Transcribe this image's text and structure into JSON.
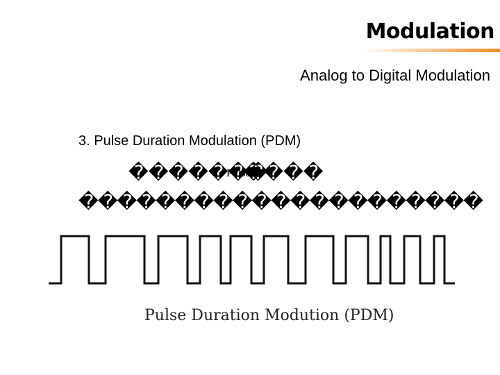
{
  "header": {
    "title": "Modulation",
    "subtitle": "Analog to Digital Modulation"
  },
  "body": {
    "heading": "3. Pulse Duration Modulation (PDM)",
    "line1": [
      "�������",
      "Pulse",
      "����"
    ],
    "line2": "���������������������"
  },
  "figure": {
    "caption": "Pulse Duration Modution (PDM)"
  }
}
